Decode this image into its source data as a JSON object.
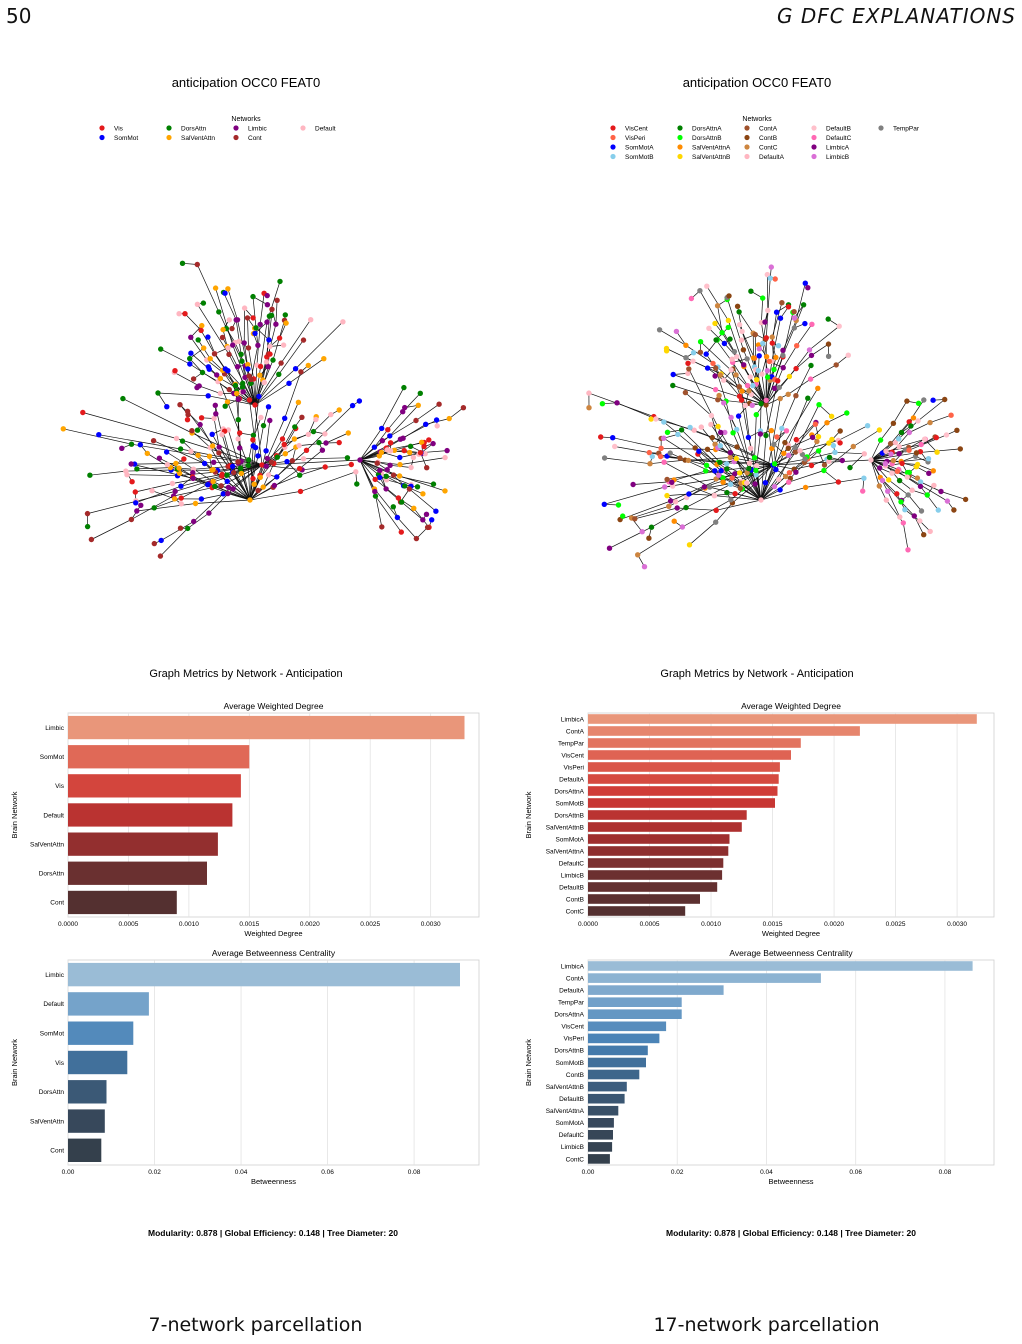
{
  "page": {
    "number": "50",
    "section_title": "G   DFC EXPLANATIONS",
    "captions": [
      "7-network parcellation",
      "17-network parcellation"
    ]
  },
  "chart_data": [
    {
      "id": "left",
      "type": "network-graph",
      "title": "anticipation OCC0 FEAT0",
      "legend_title": "Networks",
      "legend_columns": 5,
      "legend": [
        {
          "name": "Vis",
          "color": "#e41a1c"
        },
        {
          "name": "SomMot",
          "color": "#0000ff"
        },
        {
          "name": "DorsAttn",
          "color": "#008000"
        },
        {
          "name": "SalVentAttn",
          "color": "#ffa500"
        },
        {
          "name": "Limbic",
          "color": "#800080"
        },
        {
          "name": "Cont",
          "color": "#a52a2a"
        },
        {
          "name": "Default",
          "color": "#ffb6c1"
        }
      ]
    },
    {
      "id": "right",
      "type": "network-graph",
      "title": "anticipation OCC0 FEAT0",
      "legend_title": "Networks",
      "legend_columns": 5,
      "legend": [
        {
          "name": "VisCent",
          "color": "#e41a1c"
        },
        {
          "name": "VisPeri",
          "color": "#ff6347"
        },
        {
          "name": "SomMotA",
          "color": "#0000ff"
        },
        {
          "name": "SomMotB",
          "color": "#87ceeb"
        },
        {
          "name": "DorsAttnA",
          "color": "#008000"
        },
        {
          "name": "DorsAttnB",
          "color": "#00ff00"
        },
        {
          "name": "SalVentAttnA",
          "color": "#ff8c00"
        },
        {
          "name": "SalVentAttnB",
          "color": "#ffd700"
        },
        {
          "name": "ContA",
          "color": "#a0522d"
        },
        {
          "name": "ContB",
          "color": "#8b4513"
        },
        {
          "name": "ContC",
          "color": "#cd853f"
        },
        {
          "name": "DefaultA",
          "color": "#ffb6c1"
        },
        {
          "name": "DefaultB",
          "color": "#ffc0cb"
        },
        {
          "name": "DefaultC",
          "color": "#ff69b4"
        },
        {
          "name": "LimbicA",
          "color": "#800080"
        },
        {
          "name": "LimbicB",
          "color": "#da70d6"
        },
        {
          "name": "TempPar",
          "color": "#808080"
        }
      ]
    },
    {
      "id": "left-degree",
      "type": "bar",
      "orientation": "horizontal",
      "suptitle": "Graph Metrics by Network - Anticipation",
      "title": "Average Weighted Degree",
      "xlabel": "Weighted Degree",
      "ylabel": "Brain Network",
      "palette": "reds",
      "xlim": [
        0,
        0.0034
      ],
      "xticks": [
        0.0,
        0.0005,
        0.001,
        0.0015,
        0.002,
        0.0025,
        0.003
      ],
      "xtick_labels": [
        "0.0000",
        "0.0005",
        "0.0010",
        "0.0015",
        "0.0020",
        "0.0025",
        "0.0030"
      ],
      "categories": [
        "Limbic",
        "SomMot",
        "Vis",
        "Default",
        "SalVentAttn",
        "DorsAttn",
        "Cont"
      ],
      "values": [
        0.00328,
        0.0015,
        0.00143,
        0.00136,
        0.00124,
        0.00115,
        0.0009
      ]
    },
    {
      "id": "left-betweenness",
      "type": "bar",
      "orientation": "horizontal",
      "title": "Average Betweenness Centrality",
      "xlabel": "Betweenness",
      "ylabel": "Brain Network",
      "palette": "blues",
      "xlim": [
        0,
        0.095
      ],
      "xticks": [
        0.0,
        0.02,
        0.04,
        0.06,
        0.08
      ],
      "xtick_labels": [
        "0.00",
        "0.02",
        "0.04",
        "0.06",
        "0.08"
      ],
      "categories": [
        "Limbic",
        "Default",
        "SomMot",
        "Vis",
        "DorsAttn",
        "SalVentAttn",
        "Cont"
      ],
      "values": [
        0.0906,
        0.0187,
        0.0151,
        0.0137,
        0.0089,
        0.0085,
        0.0077
      ],
      "footer": "Modularity: 0.878    |    Global Efficiency: 0.148    |    Tree Diameter: 20"
    },
    {
      "id": "right-degree",
      "type": "bar",
      "orientation": "horizontal",
      "suptitle": "Graph Metrics by Network - Anticipation",
      "title": "Average Weighted Degree",
      "xlabel": "Weighted Degree",
      "ylabel": "Brain Network",
      "palette": "reds",
      "xlim": [
        0,
        0.0033
      ],
      "xticks": [
        0.0,
        0.0005,
        0.001,
        0.0015,
        0.002,
        0.0025,
        0.003
      ],
      "xtick_labels": [
        "0.0000",
        "0.0005",
        "0.0010",
        "0.0015",
        "0.0020",
        "0.0025",
        "0.0030"
      ],
      "categories": [
        "LimbicA",
        "ContA",
        "TempPar",
        "VisCent",
        "VisPeri",
        "DefaultA",
        "DorsAttnA",
        "SomMotB",
        "DorsAttnB",
        "SalVentAttnB",
        "SomMotA",
        "SalVentAttnA",
        "DefaultC",
        "LimbicB",
        "DefaultB",
        "ContB",
        "ContC"
      ],
      "values": [
        0.00316,
        0.00221,
        0.00173,
        0.00165,
        0.00156,
        0.00155,
        0.00154,
        0.00152,
        0.00129,
        0.00125,
        0.00115,
        0.00114,
        0.0011,
        0.00109,
        0.00105,
        0.00091,
        0.00079
      ]
    },
    {
      "id": "right-betweenness",
      "type": "bar",
      "orientation": "horizontal",
      "title": "Average Betweenness Centrality",
      "xlabel": "Betweenness",
      "ylabel": "Brain Network",
      "palette": "blues",
      "xlim": [
        0,
        0.091
      ],
      "xticks": [
        0.0,
        0.02,
        0.04,
        0.06,
        0.08
      ],
      "xtick_labels": [
        "0.00",
        "0.02",
        "0.04",
        "0.06",
        "0.08"
      ],
      "categories": [
        "LimbicA",
        "ContA",
        "DefaultA",
        "TempPar",
        "DorsAttnA",
        "VisCent",
        "VisPeri",
        "DorsAttnB",
        "SomMotB",
        "ContB",
        "SalVentAttnB",
        "DefaultB",
        "SalVentAttnA",
        "SomMotA",
        "DefaultC",
        "LimbicB",
        "ContC"
      ],
      "values": [
        0.0862,
        0.0522,
        0.0304,
        0.021,
        0.021,
        0.0175,
        0.016,
        0.0134,
        0.013,
        0.0115,
        0.0087,
        0.0082,
        0.0068,
        0.0058,
        0.0056,
        0.0054,
        0.0049
      ],
      "footer": "Modularity: 0.878    |    Global Efficiency: 0.148    |    Tree Diameter: 20"
    }
  ]
}
